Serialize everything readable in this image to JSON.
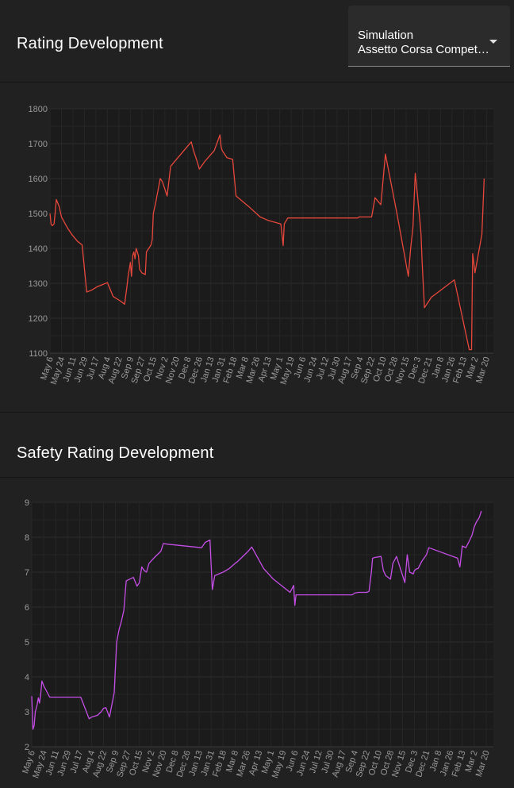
{
  "header": {
    "title": "Rating Development",
    "select": {
      "label": "Simulation",
      "value": "Assetto Corsa Competizione"
    }
  },
  "safety_header": {
    "title": "Safety Rating Development"
  },
  "colors": {
    "background": "#212121",
    "plot_bg": "#1b1b1b",
    "grid": "#2c2c2c",
    "tick_text": "#9a9a9a",
    "rating_line": "#e8473c",
    "safety_line": "#c64ee8"
  },
  "chart_data": [
    {
      "type": "line",
      "title": "Rating Development",
      "xlabel": "",
      "ylabel": "",
      "x_ticks": [
        "May 6",
        "May 24",
        "Jun 11",
        "Jun 29",
        "Jul 17",
        "Aug 4",
        "Aug 22",
        "Sep 9",
        "Sep 27",
        "Oct 15",
        "Nov 2",
        "Nov 20",
        "Dec 8",
        "Dec 26",
        "Jan 13",
        "Jan 31",
        "Feb 18",
        "Mar 8",
        "Mar 26",
        "Apr 13",
        "May 1",
        "May 19",
        "Jun 6",
        "Jun 24",
        "Jul 12",
        "Jul 30",
        "Aug 17",
        "Sep 4",
        "Sep 22",
        "Oct 10",
        "Oct 28",
        "Nov 15",
        "Dec 3",
        "Dec 21",
        "Jan 8",
        "Jan 26",
        "Feb 13",
        "Mar 2",
        "Mar 20"
      ],
      "y_ticks": [
        1100,
        1200,
        1300,
        1400,
        1500,
        1600,
        1700,
        1800
      ],
      "ylim": [
        1100,
        1800
      ],
      "xlim": [
        0,
        38.6
      ],
      "series": [
        {
          "name": "Rating",
          "x": [
            0.0,
            0.1,
            0.2,
            0.35,
            0.45,
            0.55,
            0.8,
            1.0,
            1.5,
            1.9,
            2.4,
            2.8,
            3.2,
            3.6,
            4.1,
            5.0,
            5.5,
            6.1,
            6.5,
            6.7,
            6.8,
            7.0,
            7.1,
            7.2,
            7.3,
            7.4,
            7.5,
            7.6,
            7.7,
            7.8,
            8.0,
            8.3,
            8.4,
            8.5,
            8.8,
            8.9,
            9.0,
            9.2,
            9.6,
            9.8,
            10.2,
            10.5,
            12.3,
            12.5,
            12.8,
            13.0,
            13.5,
            14.3,
            14.8,
            14.9,
            15.0,
            15.4,
            15.6,
            15.9,
            16.2,
            17.3,
            18.3,
            19.0,
            20.1,
            20.3,
            20.4,
            20.7,
            25.6,
            26.5,
            26.8,
            26.9,
            27.2,
            27.7,
            28.0,
            28.3,
            28.8,
            29.2,
            30.2,
            31.2,
            31.4,
            31.6,
            31.8,
            32.0,
            32.2,
            32.3,
            32.4,
            32.6,
            33.2,
            35.2,
            36.5,
            36.7,
            36.8,
            37.0,
            37.6,
            37.8
          ],
          "values": [
            1500,
            1470,
            1465,
            1470,
            1500,
            1540,
            1520,
            1490,
            1460,
            1440,
            1420,
            1410,
            1275,
            1280,
            1290,
            1302,
            1262,
            1250,
            1240,
            1290,
            1320,
            1360,
            1320,
            1380,
            1390,
            1370,
            1400,
            1390,
            1380,
            1340,
            1330,
            1325,
            1390,
            1395,
            1410,
            1425,
            1500,
            1530,
            1600,
            1590,
            1550,
            1635,
            1705,
            1680,
            1650,
            1627,
            1650,
            1680,
            1725,
            1690,
            1680,
            1660,
            1658,
            1655,
            1550,
            1520,
            1490,
            1480,
            1470,
            1408,
            1470,
            1487,
            1487,
            1487,
            1487,
            1490,
            1490,
            1490,
            1490,
            1545,
            1525,
            1670,
            1500,
            1320,
            1400,
            1460,
            1615,
            1550,
            1480,
            1440,
            1360,
            1230,
            1260,
            1310,
            1110,
            1110,
            1385,
            1330,
            1440,
            1600
          ]
        }
      ]
    },
    {
      "type": "line",
      "title": "Safety Rating Development",
      "xlabel": "",
      "ylabel": "",
      "x_ticks": [
        "May 6",
        "May 24",
        "Jun 11",
        "Jun 29",
        "Jul 17",
        "Aug 4",
        "Aug 22",
        "Sep 9",
        "Sep 27",
        "Oct 15",
        "Nov 2",
        "Nov 20",
        "Dec 8",
        "Dec 26",
        "Jan 13",
        "Jan 31",
        "Feb 18",
        "Mar 8",
        "Mar 26",
        "Apr 13",
        "May 1",
        "May 19",
        "Jun 6",
        "Jun 24",
        "Jul 12",
        "Jul 30",
        "Aug 17",
        "Sep 4",
        "Sep 22",
        "Oct 10",
        "Oct 28",
        "Nov 15",
        "Dec 3",
        "Dec 21",
        "Jan 8",
        "Jan 26",
        "Feb 13",
        "Mar 2",
        "Mar 20"
      ],
      "y_ticks": [
        2,
        3,
        4,
        5,
        6,
        7,
        8,
        9
      ],
      "ylim": [
        2,
        9
      ],
      "xlim": [
        0,
        38.6
      ],
      "series": [
        {
          "name": "Safety Rating",
          "x": [
            0.0,
            0.1,
            0.2,
            0.3,
            0.45,
            0.55,
            0.65,
            0.75,
            0.85,
            1.0,
            1.5,
            2.1,
            2.6,
            3.3,
            3.7,
            4.1,
            4.8,
            5.0,
            5.5,
            5.8,
            6.0,
            6.2,
            6.5,
            6.7,
            6.9,
            7.1,
            7.3,
            7.5,
            7.7,
            7.9,
            8.2,
            8.5,
            8.8,
            9.0,
            9.2,
            9.4,
            9.6,
            9.8,
            10.2,
            10.5,
            10.8,
            11.0,
            11.4,
            14.2,
            14.5,
            14.9,
            15.1,
            15.3,
            16.0,
            16.5,
            17.0,
            17.2,
            17.5,
            18.1,
            18.4,
            19.4,
            20.2,
            21.6,
            21.9,
            22.0,
            22.1,
            26.8,
            27.0,
            27.3,
            27.6,
            28.0,
            28.2,
            28.4,
            28.5,
            28.7,
            29.2,
            29.4,
            29.6,
            30.0,
            30.2,
            30.5,
            31.2,
            31.4,
            31.6,
            31.9,
            32.0,
            32.2,
            32.3,
            32.6,
            33.0,
            33.2,
            35.6,
            35.8,
            36.0,
            36.3,
            36.6,
            36.8,
            37.0,
            37.2,
            37.4,
            37.6
          ],
          "values": [
            3.45,
            2.5,
            2.6,
            3.0,
            3.2,
            3.4,
            3.25,
            3.5,
            3.88,
            3.75,
            3.42,
            3.42,
            3.42,
            3.42,
            3.42,
            3.42,
            2.8,
            2.85,
            2.9,
            3.0,
            3.1,
            3.12,
            2.85,
            3.2,
            3.55,
            5.0,
            5.35,
            5.6,
            5.9,
            6.75,
            6.8,
            6.85,
            6.6,
            6.7,
            7.15,
            7.05,
            7.0,
            7.25,
            7.4,
            7.5,
            7.6,
            7.82,
            7.8,
            7.7,
            7.85,
            7.92,
            6.5,
            6.9,
            7.0,
            7.1,
            7.25,
            7.3,
            7.4,
            7.6,
            7.72,
            7.1,
            6.8,
            6.42,
            6.62,
            6.05,
            6.35,
            6.35,
            6.4,
            6.42,
            6.42,
            6.42,
            6.45,
            7.0,
            7.4,
            7.42,
            7.45,
            7.05,
            6.9,
            6.8,
            7.25,
            7.45,
            6.7,
            7.5,
            7.0,
            6.95,
            7.05,
            7.1,
            7.1,
            7.3,
            7.5,
            7.7,
            7.4,
            7.15,
            7.75,
            7.7,
            7.9,
            8.05,
            8.3,
            8.45,
            8.55,
            8.75
          ]
        }
      ]
    }
  ]
}
